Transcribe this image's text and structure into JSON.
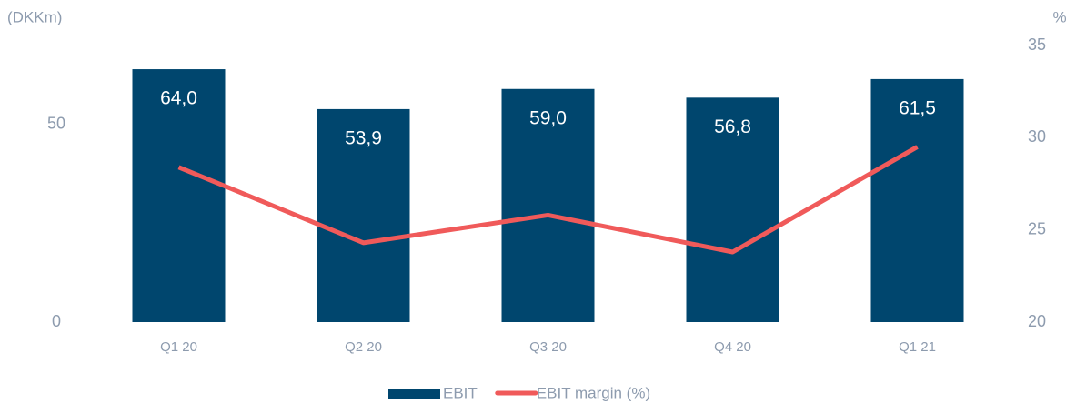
{
  "chart_data": {
    "type": "bar",
    "y_label": "(DKKm)",
    "y2_label": "%",
    "categories": [
      "Q1 20",
      "Q2 20",
      "Q3 20",
      "Q4 20",
      "Q1 21"
    ],
    "series": [
      {
        "name": "EBIT",
        "color": "#00466e",
        "type": "bar",
        "values": [
          64.0,
          53.9,
          59.0,
          56.8,
          61.5
        ],
        "value_labels": [
          "64,0",
          "53,9",
          "59,0",
          "56,8",
          "61,5"
        ]
      },
      {
        "name": "EBIT margin (%)",
        "color": "#f05a5a",
        "type": "line",
        "axis": "y2",
        "values": [
          28.4,
          24.3,
          25.8,
          23.8,
          29.5
        ]
      }
    ],
    "ylim": [
      0,
      70
    ],
    "yticks": [
      0,
      50
    ],
    "y2lim": [
      20,
      35
    ],
    "y2ticks": [
      20,
      25,
      30,
      35
    ]
  }
}
